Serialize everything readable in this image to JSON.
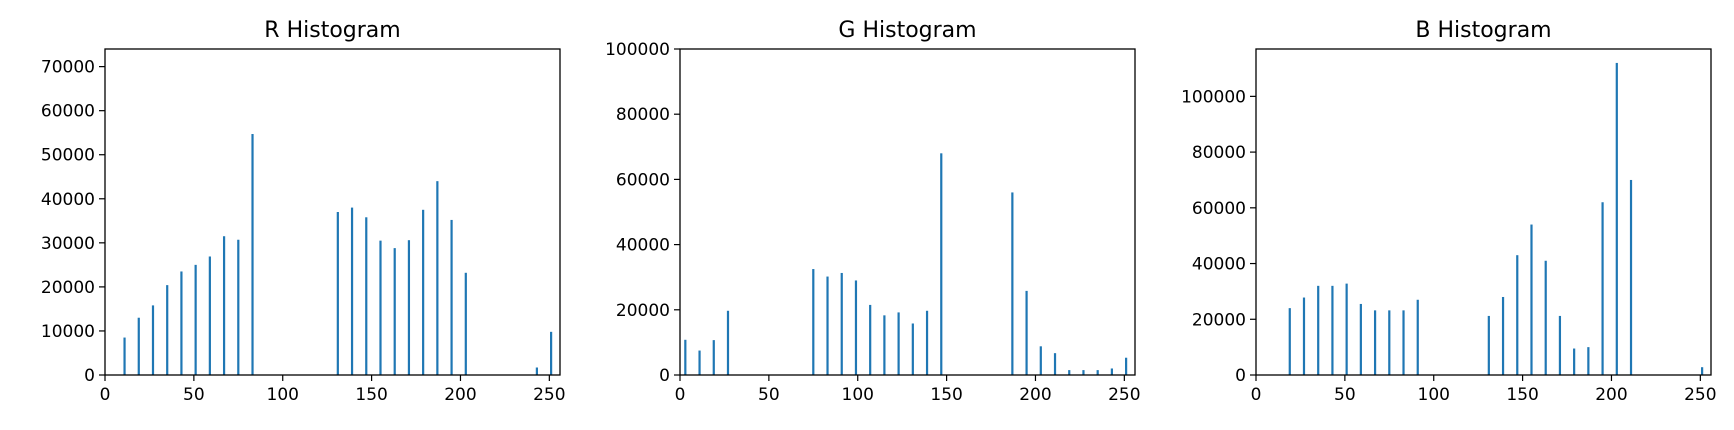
{
  "chart_data": [
    {
      "type": "bar",
      "title": "R Histogram",
      "xlabel": "",
      "ylabel": "",
      "xlim": [
        0,
        256
      ],
      "ylim": [
        0,
        74000
      ],
      "xticks": [
        0,
        50,
        100,
        150,
        200,
        250
      ],
      "yticks": [
        0,
        10000,
        20000,
        30000,
        40000,
        50000,
        60000,
        70000
      ],
      "color": "#1f77b4",
      "grid": false,
      "x": [
        11,
        19,
        27,
        35,
        43,
        51,
        59,
        67,
        75,
        83,
        131,
        139,
        147,
        155,
        163,
        171,
        179,
        187,
        195,
        203,
        243,
        251
      ],
      "values": [
        8500,
        13000,
        15800,
        20400,
        23500,
        25000,
        26900,
        31500,
        30700,
        54700,
        37000,
        38000,
        35800,
        30500,
        28800,
        30600,
        37500,
        44000,
        35200,
        23200,
        1700,
        9800
      ]
    },
    {
      "type": "bar",
      "title": "G Histogram",
      "xlabel": "",
      "ylabel": "",
      "xlim": [
        0,
        256
      ],
      "ylim": [
        0,
        100000
      ],
      "xticks": [
        0,
        50,
        100,
        150,
        200,
        250
      ],
      "yticks": [
        0,
        20000,
        40000,
        60000,
        80000,
        100000
      ],
      "color": "#1f77b4",
      "grid": false,
      "x": [
        3,
        11,
        19,
        27,
        75,
        83,
        91,
        99,
        107,
        115,
        123,
        131,
        139,
        147,
        187,
        195,
        203,
        211,
        219,
        227,
        235,
        243,
        251
      ],
      "values": [
        10800,
        7500,
        10700,
        19700,
        32500,
        30200,
        31300,
        29000,
        21500,
        18300,
        19200,
        15800,
        19700,
        68000,
        56000,
        25800,
        8800,
        6700,
        1500,
        1500,
        1500,
        2000,
        5300
      ]
    },
    {
      "type": "bar",
      "title": "B Histogram",
      "xlabel": "",
      "ylabel": "",
      "xlim": [
        0,
        256
      ],
      "ylim": [
        0,
        117000
      ],
      "xticks": [
        0,
        50,
        100,
        150,
        200,
        250
      ],
      "yticks": [
        0,
        20000,
        40000,
        60000,
        80000,
        100000
      ],
      "color": "#1f77b4",
      "grid": false,
      "x": [
        19,
        27,
        35,
        43,
        51,
        59,
        67,
        75,
        83,
        91,
        131,
        139,
        147,
        155,
        163,
        171,
        179,
        187,
        195,
        203,
        211,
        251
      ],
      "values": [
        24000,
        27800,
        32000,
        32000,
        32800,
        25500,
        23200,
        23200,
        23200,
        27000,
        21200,
        28000,
        43000,
        54000,
        41000,
        21200,
        9500,
        10000,
        62000,
        112000,
        70000,
        2800
      ]
    }
  ]
}
